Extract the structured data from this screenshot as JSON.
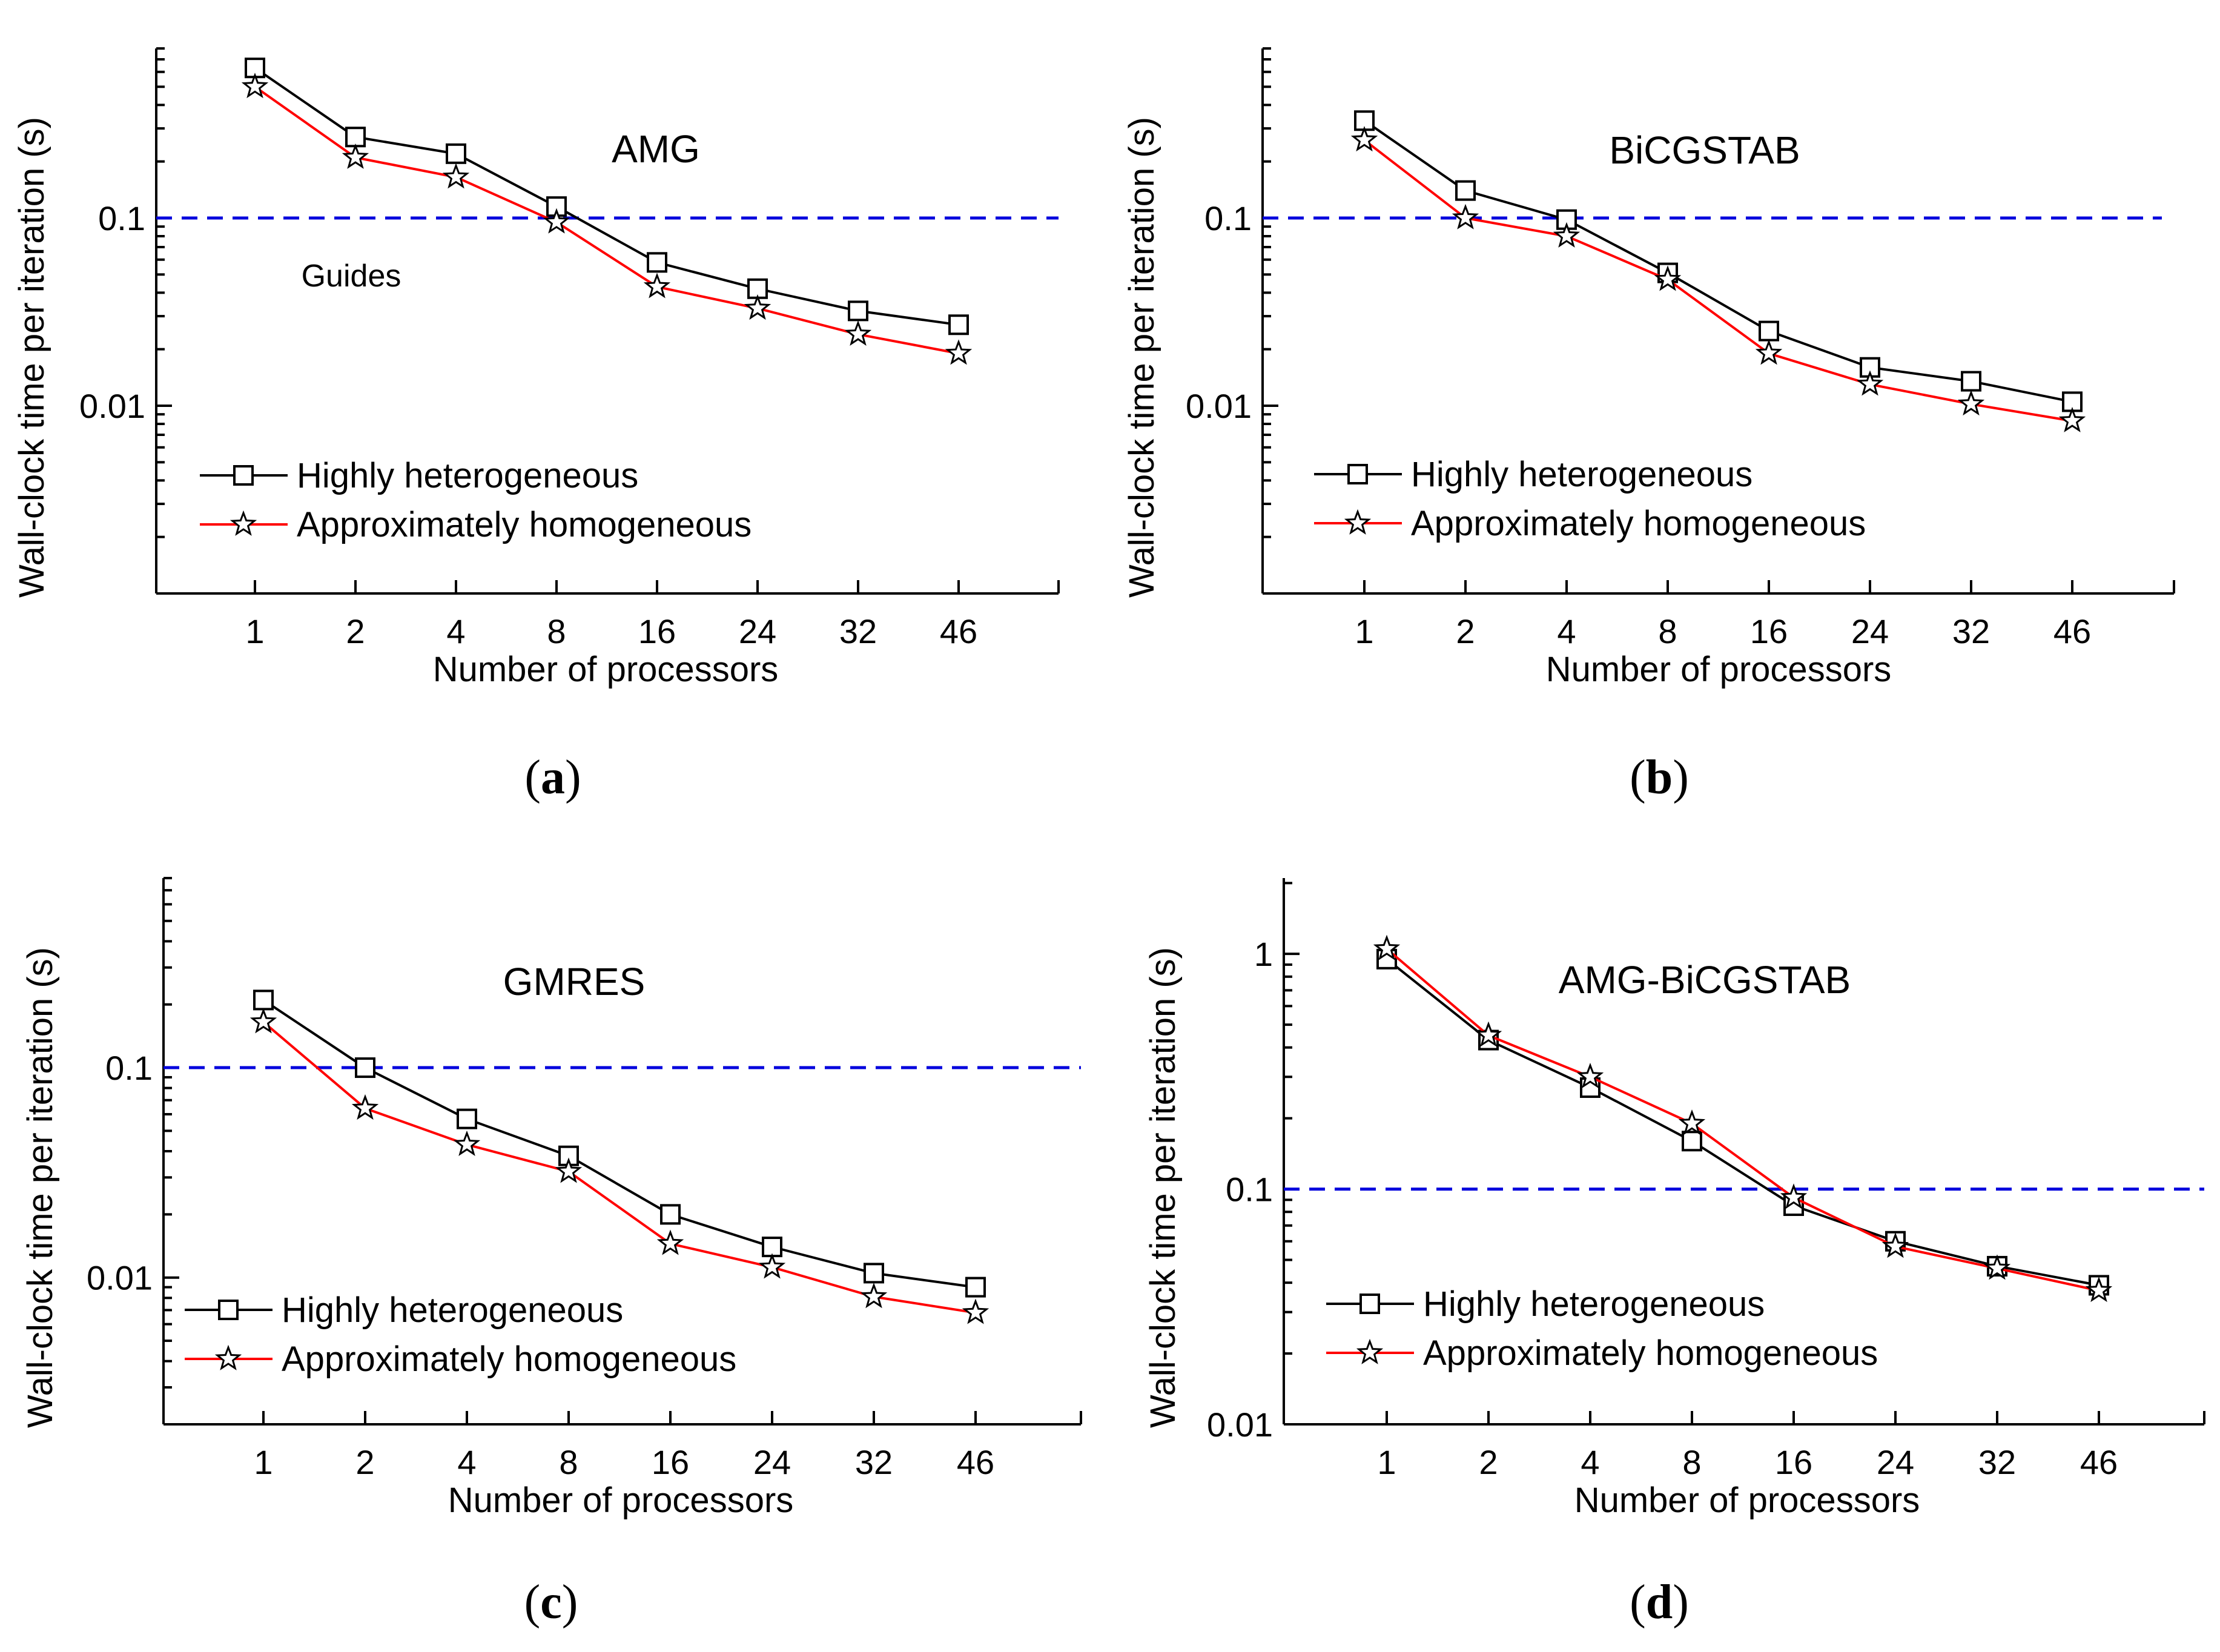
{
  "figure": {
    "x_axis_label": "Number of processors",
    "y_axis_label": "Wall-clock time per iteration (s)",
    "x_tick_labels": [
      "1",
      "2",
      "4",
      "8",
      "16",
      "24",
      "32",
      "46"
    ],
    "legend": {
      "series1": "Highly heterogeneous",
      "series2": "Approximately homogeneous"
    },
    "guide_line_value": 0.1,
    "colors": {
      "series1": "#000000",
      "series2": "#ff0000",
      "guide": "#0000dd"
    }
  },
  "chart_data": [
    {
      "type": "line",
      "title": "AMG",
      "caption_letter": "a",
      "annotation": "Guides",
      "xlabel": "Number of processors",
      "ylabel": "Wall-clock time per iteration (s)",
      "categories": [
        "1",
        "2",
        "4",
        "8",
        "16",
        "24",
        "32",
        "46"
      ],
      "y_scale": "log",
      "ylim": [
        0.001,
        0.8
      ],
      "y_ticks": [
        {
          "value": 0.1,
          "label": "0.1"
        },
        {
          "value": 0.01,
          "label": "0.01"
        }
      ],
      "legend_position": "bottom-left",
      "series": [
        {
          "name": "Highly heterogeneous",
          "marker": "square",
          "values": [
            0.63,
            0.27,
            0.22,
            0.115,
            0.058,
            0.042,
            0.032,
            0.027
          ]
        },
        {
          "name": "Approximately homogeneous",
          "marker": "star",
          "values": [
            0.5,
            0.21,
            0.165,
            0.095,
            0.043,
            0.033,
            0.024,
            0.019
          ]
        }
      ]
    },
    {
      "type": "line",
      "title": "BiCGSTAB",
      "caption_letter": "b",
      "xlabel": "Number of processors",
      "ylabel": "Wall-clock time per iteration (s)",
      "categories": [
        "1",
        "2",
        "4",
        "8",
        "16",
        "24",
        "32",
        "46"
      ],
      "y_scale": "log",
      "ylim": [
        0.001,
        0.8
      ],
      "y_ticks": [
        {
          "value": 0.1,
          "label": "0.1"
        },
        {
          "value": 0.01,
          "label": "0.01"
        }
      ],
      "legend_position": "bottom-left",
      "series": [
        {
          "name": "Highly heterogeneous",
          "marker": "square",
          "values": [
            0.33,
            0.14,
            0.098,
            0.051,
            0.025,
            0.016,
            0.0135,
            0.0105
          ]
        },
        {
          "name": "Approximately homogeneous",
          "marker": "star",
          "values": [
            0.26,
            0.1,
            0.08,
            0.047,
            0.019,
            0.013,
            0.0102,
            0.0083
          ]
        }
      ]
    },
    {
      "type": "line",
      "title": "GMRES",
      "caption_letter": "c",
      "xlabel": "Number of processors",
      "ylabel": "Wall-clock time per iteration (s)",
      "categories": [
        "1",
        "2",
        "4",
        "8",
        "16",
        "24",
        "32",
        "46"
      ],
      "y_scale": "log",
      "ylim": [
        0.002,
        0.8
      ],
      "y_ticks": [
        {
          "value": 0.1,
          "label": "0.1"
        },
        {
          "value": 0.01,
          "label": "0.01"
        }
      ],
      "legend_position": "bottom-left",
      "series": [
        {
          "name": "Highly heterogeneous",
          "marker": "square",
          "values": [
            0.21,
            0.1,
            0.057,
            0.038,
            0.02,
            0.014,
            0.0105,
            0.009
          ]
        },
        {
          "name": "Approximately homogeneous",
          "marker": "star",
          "values": [
            0.165,
            0.064,
            0.043,
            0.032,
            0.0145,
            0.0112,
            0.0081,
            0.0068
          ]
        }
      ]
    },
    {
      "type": "line",
      "title": "AMG-BiCGSTAB",
      "caption_letter": "d",
      "xlabel": "Number of processors",
      "ylabel": "Wall-clock time per iteration (s)",
      "categories": [
        "1",
        "2",
        "4",
        "8",
        "16",
        "24",
        "32",
        "46"
      ],
      "y_scale": "log",
      "ylim": [
        0.01,
        2.1
      ],
      "y_ticks": [
        {
          "value": 1,
          "label": "1"
        },
        {
          "value": 0.1,
          "label": "0.1"
        },
        {
          "value": 0.01,
          "label": "0.01"
        }
      ],
      "legend_position": "bottom-left",
      "series": [
        {
          "name": "Highly heterogeneous",
          "marker": "square",
          "values": [
            0.95,
            0.43,
            0.27,
            0.16,
            0.085,
            0.06,
            0.047,
            0.039
          ]
        },
        {
          "name": "Approximately homogeneous",
          "marker": "star",
          "values": [
            1.05,
            0.45,
            0.3,
            0.19,
            0.092,
            0.057,
            0.046,
            0.037
          ]
        }
      ]
    }
  ]
}
